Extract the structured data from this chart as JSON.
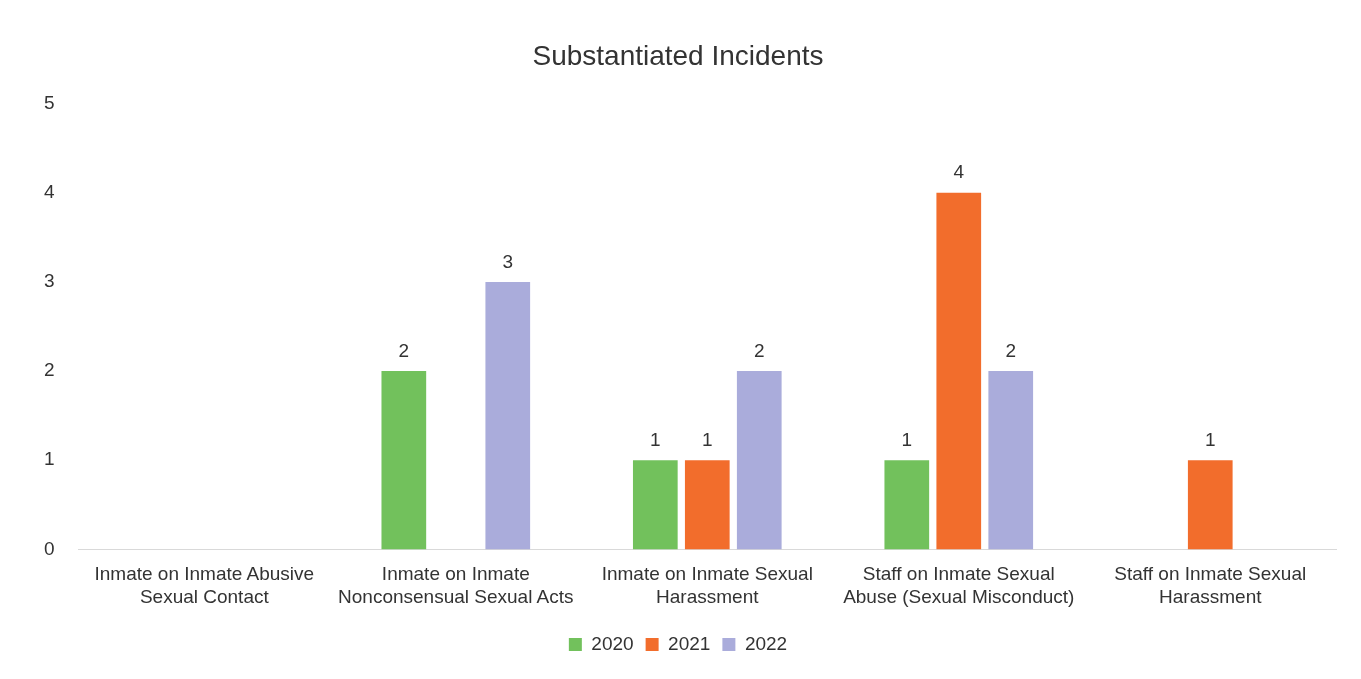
{
  "chart_data": {
    "type": "bar",
    "title": "Substantiated Incidents",
    "categories": [
      "Inmate on Inmate Abusive Sexual Contact",
      "Inmate on Inmate Nonconsensual Sexual Acts",
      "Inmate on Inmate Sexual Harassment",
      "Staff on Inmate Sexual Abuse (Sexual Misconduct)",
      "Staff on Inmate Sexual Harassment"
    ],
    "series": [
      {
        "name": "2020",
        "color": "#72c15c",
        "values": [
          null,
          2,
          1,
          1,
          null
        ]
      },
      {
        "name": "2021",
        "color": "#f26d2c",
        "values": [
          null,
          null,
          1,
          4,
          1
        ]
      },
      {
        "name": "2022",
        "color": "#aaacdb",
        "values": [
          null,
          3,
          2,
          2,
          null
        ]
      }
    ],
    "ylim": [
      0,
      5
    ],
    "yticks": [
      0,
      1,
      2,
      3,
      4,
      5
    ],
    "grid": false,
    "legend": "bottom",
    "data_labels": true
  }
}
